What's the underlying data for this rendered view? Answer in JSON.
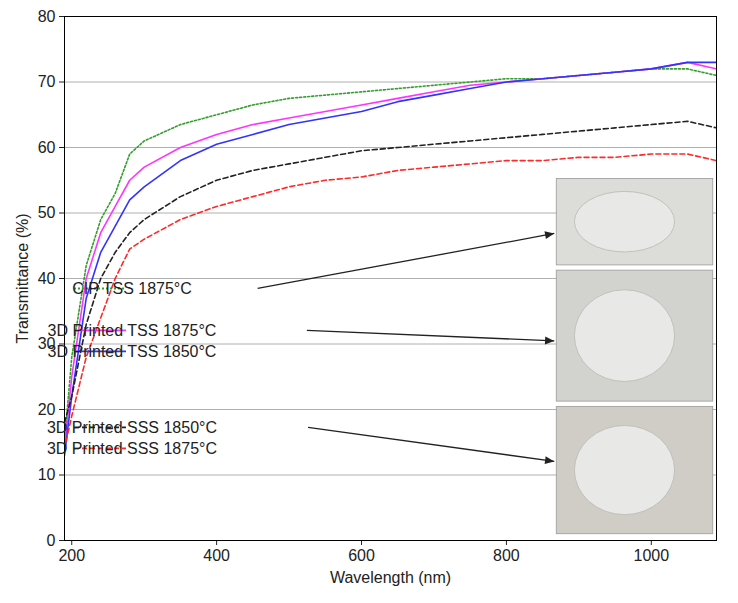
{
  "chart_data": {
    "type": "line",
    "x_label": "Wavelength (nm)",
    "y_label": "Transmittance (%)",
    "x": [
      190,
      200,
      220,
      240,
      260,
      280,
      300,
      350,
      400,
      450,
      500,
      550,
      600,
      650,
      700,
      750,
      800,
      850,
      900,
      950,
      1000,
      1050,
      1090
    ],
    "series": [
      {
        "name": "CIP TSS 1875°C",
        "color": "#33a02c",
        "line_style": "dotted",
        "values": [
          15,
          28,
          42,
          49,
          53,
          59,
          61,
          63.5,
          65,
          66.5,
          67.5,
          68,
          68.5,
          69,
          69.5,
          70,
          70.5,
          70.5,
          71,
          71.5,
          72,
          72,
          71
        ]
      },
      {
        "name": "3D Printed TSS 1875°C",
        "color": "#ff33ff",
        "line_style": "solid",
        "values": [
          14,
          25,
          40,
          47,
          51,
          55,
          57,
          60,
          62,
          63.5,
          64.5,
          65.5,
          66.5,
          67.5,
          68.5,
          69.5,
          70,
          70.5,
          71,
          71.5,
          72,
          73,
          72
        ]
      },
      {
        "name": "3D Printed TSS 1850°C",
        "color": "#3333ff",
        "line_style": "solid",
        "values": [
          13,
          22,
          37,
          44,
          48,
          52,
          54,
          58,
          60.5,
          62,
          63.5,
          64.5,
          65.5,
          67,
          68,
          69,
          70,
          70.5,
          71,
          71.5,
          72,
          73,
          73
        ]
      },
      {
        "name": "3D Printed SSS 1850°C",
        "color": "#222222",
        "line_style": "dashed",
        "values": [
          18,
          22,
          33,
          40,
          44,
          47,
          49,
          52.5,
          55,
          56.5,
          57.5,
          58.5,
          59.5,
          60,
          60.5,
          61,
          61.5,
          62,
          62.5,
          63,
          63.5,
          64,
          63
        ]
      },
      {
        "name": "3D Printed SSS 1875°C",
        "color": "#ff2a2a",
        "line_style": "dashed",
        "values": [
          14,
          19,
          28,
          34,
          40,
          44.5,
          46,
          49,
          51,
          52.5,
          54,
          55,
          55.5,
          56.5,
          57,
          57.5,
          58,
          58,
          58.5,
          58.5,
          59,
          59,
          58
        ]
      }
    ],
    "xlim": [
      190,
      1090
    ],
    "xticks": [
      200,
      400,
      600,
      800,
      1000
    ],
    "ylim": [
      0,
      80
    ],
    "yticks": [
      0,
      10,
      20,
      30,
      40,
      50,
      60,
      70,
      80
    ],
    "grid": true,
    "legend": "bottom"
  }
}
